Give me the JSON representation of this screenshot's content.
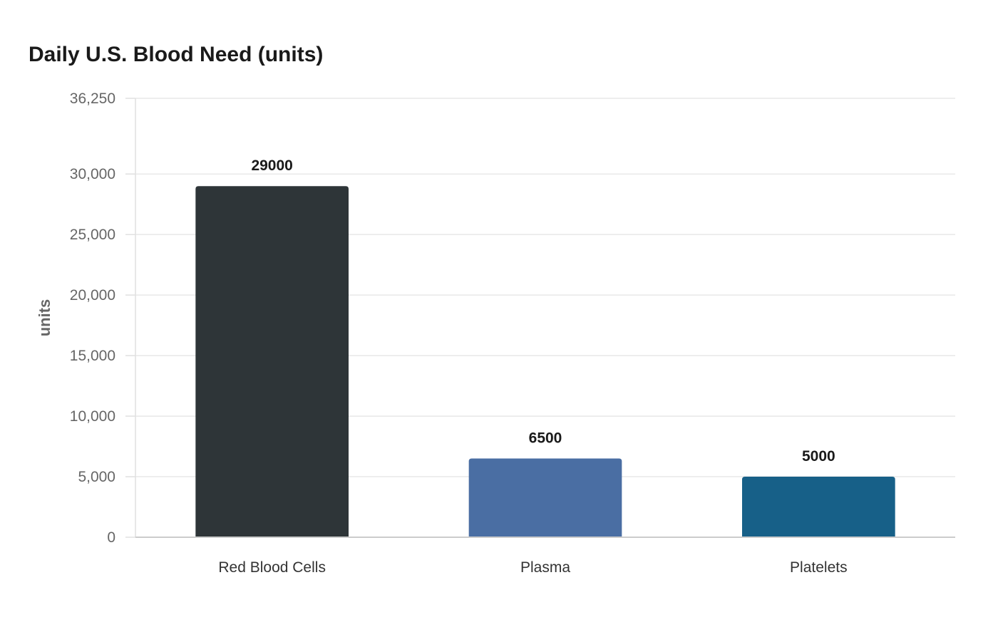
{
  "chart_data": {
    "type": "bar",
    "title": "Daily U.S. Blood Need (units)",
    "xlabel": "",
    "ylabel": "units",
    "categories": [
      "Red Blood Cells",
      "Plasma",
      "Platelets"
    ],
    "values": [
      29000,
      6500,
      5000
    ],
    "data_labels": [
      "29000",
      "6500",
      "5000"
    ],
    "colors": [
      "#2e3538",
      "#4a6ea3",
      "#176088"
    ],
    "ylim": [
      0,
      36250
    ],
    "yticks": [
      0,
      5000,
      10000,
      15000,
      20000,
      25000,
      30000,
      36250
    ],
    "ytick_labels": [
      "0",
      "5,000",
      "10,000",
      "15,000",
      "20,000",
      "25,000",
      "30,000",
      "36,250"
    ],
    "grid": true,
    "legend": "none"
  }
}
